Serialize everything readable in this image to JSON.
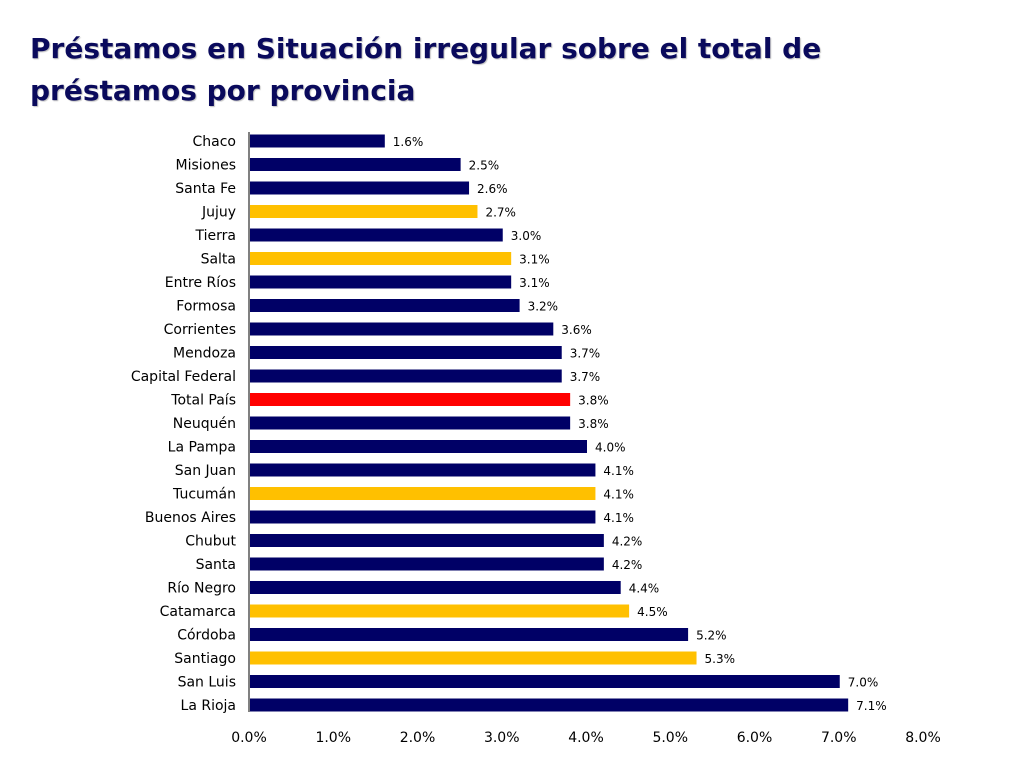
{
  "title": "Préstamos en Situación irregular sobre el total de préstamos por provincia",
  "colors": {
    "default": "#000066",
    "highlight": "#FFC000",
    "total": "#FF0000"
  },
  "chart_data": {
    "type": "bar",
    "orientation": "horizontal",
    "title": "Préstamos en Situación irregular sobre el total de préstamos por provincia",
    "xlabel": "",
    "ylabel": "",
    "xlim": [
      0,
      8
    ],
    "xticks": [
      0,
      1,
      2,
      3,
      4,
      5,
      6,
      7,
      8
    ],
    "xtick_labels": [
      "0.0%",
      "1.0%",
      "2.0%",
      "3.0%",
      "4.0%",
      "5.0%",
      "6.0%",
      "7.0%",
      "8.0%"
    ],
    "grid": false,
    "legend": "none",
    "categories": [
      "Chaco",
      "Misiones",
      "Santa Fe",
      "Jujuy",
      "Tierra ",
      "Salta",
      "Entre Ríos",
      "Formosa",
      "Corrientes",
      "Mendoza",
      "Capital Federal",
      "Total País",
      "Neuquén",
      "La Pampa",
      "San Juan",
      "Tucumán",
      "Buenos Aires",
      "Chubut",
      "Santa",
      "Río Negro",
      "Catamarca",
      "Córdoba",
      "Santiago",
      "San Luis",
      "La Rioja"
    ],
    "values": [
      1.6,
      2.5,
      2.6,
      2.7,
      3.0,
      3.1,
      3.1,
      3.2,
      3.6,
      3.7,
      3.7,
      3.8,
      3.8,
      4.0,
      4.1,
      4.1,
      4.1,
      4.2,
      4.2,
      4.4,
      4.5,
      5.2,
      5.3,
      7.0,
      7.1
    ],
    "value_labels": [
      "1.6%",
      "2.5%",
      "2.6%",
      "2.7%",
      "3.0%",
      "3.1%",
      "3.1%",
      "3.2%",
      "3.6%",
      "3.7%",
      "3.7%",
      "3.8%",
      "3.8%",
      "4.0%",
      "4.1%",
      "4.1%",
      "4.1%",
      "4.2%",
      "4.2%",
      "4.4%",
      "4.5%",
      "5.2%",
      "5.3%",
      "7.0%",
      "7.1%"
    ],
    "bar_colors": [
      "#000066",
      "#000066",
      "#000066",
      "#FFC000",
      "#000066",
      "#FFC000",
      "#000066",
      "#000066",
      "#000066",
      "#000066",
      "#000066",
      "#FF0000",
      "#000066",
      "#000066",
      "#000066",
      "#FFC000",
      "#000066",
      "#000066",
      "#000066",
      "#000066",
      "#FFC000",
      "#000066",
      "#FFC000",
      "#000066",
      "#000066"
    ]
  }
}
